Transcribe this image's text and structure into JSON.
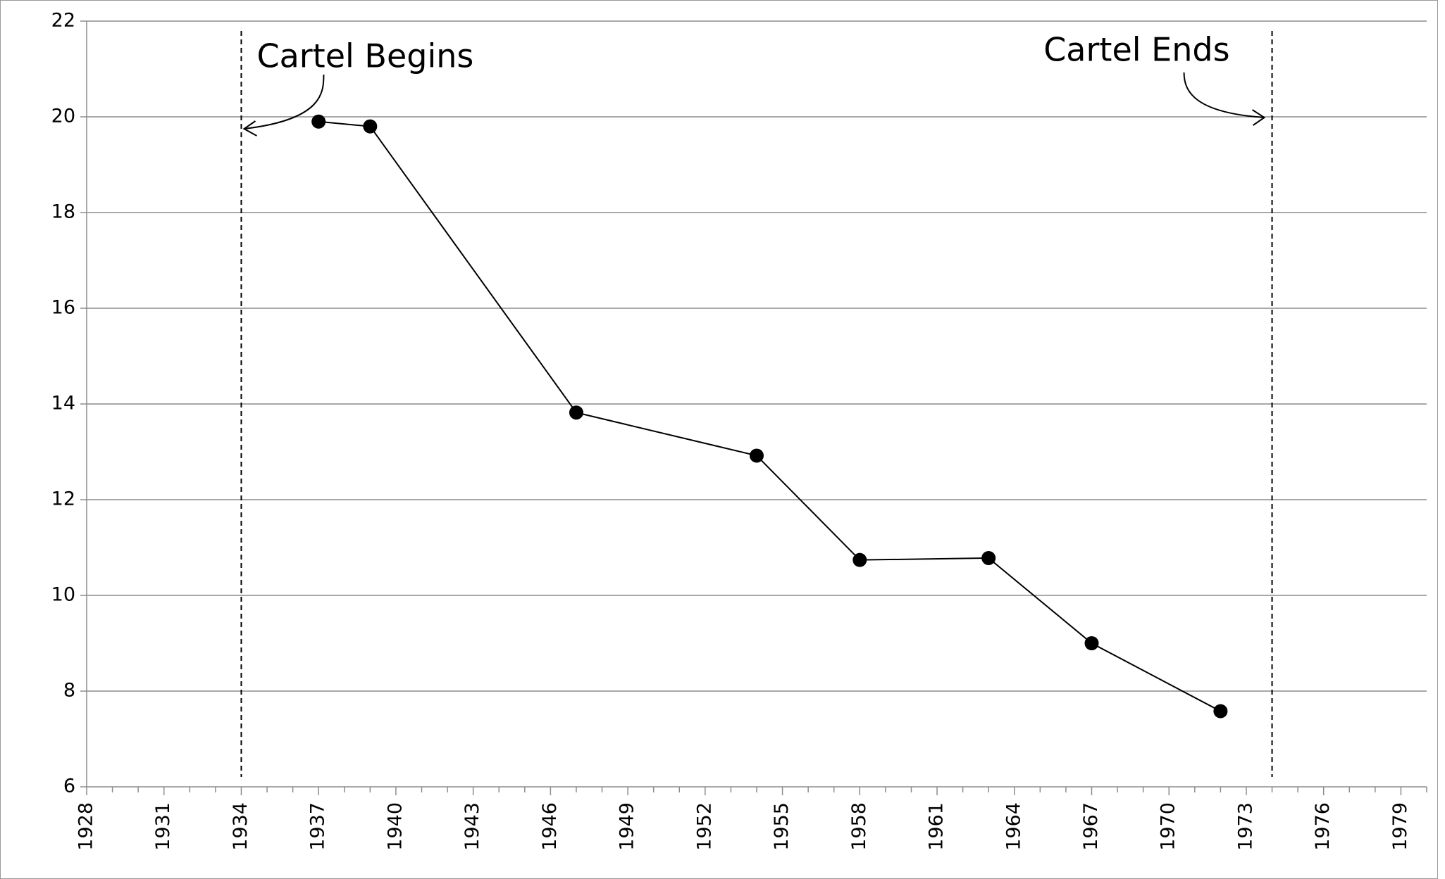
{
  "chart_data": {
    "type": "line",
    "x": [
      1937,
      1939,
      1947,
      1954,
      1958,
      1963,
      1967,
      1972
    ],
    "series": [
      {
        "color": "#000000",
        "values": [
          19.9,
          19.8,
          13.82,
          12.92,
          10.74,
          10.78,
          9.0,
          7.58
        ]
      }
    ],
    "xlim": [
      1928,
      1980
    ],
    "xticks": [
      1928,
      1931,
      1934,
      1937,
      1940,
      1943,
      1946,
      1949,
      1952,
      1955,
      1958,
      1961,
      1964,
      1967,
      1970,
      1973,
      1976,
      1979
    ],
    "xminorticks": [
      1929,
      1930,
      1932,
      1933,
      1935,
      1936,
      1938,
      1939,
      1941,
      1942,
      1944,
      1945,
      1947,
      1948,
      1950,
      1951,
      1953,
      1954,
      1956,
      1957,
      1959,
      1960,
      1962,
      1963,
      1965,
      1966,
      1968,
      1969,
      1971,
      1972,
      1974,
      1975,
      1977,
      1978,
      1980
    ],
    "ylim": [
      6,
      22
    ],
    "yticks": [
      6,
      8,
      10,
      12,
      14,
      16,
      18,
      20,
      22
    ],
    "grid": true,
    "vlines": [
      1934,
      1974
    ],
    "annotations": [
      {
        "text": "Cartel Begins"
      },
      {
        "text": "Cartel Ends"
      }
    ]
  }
}
